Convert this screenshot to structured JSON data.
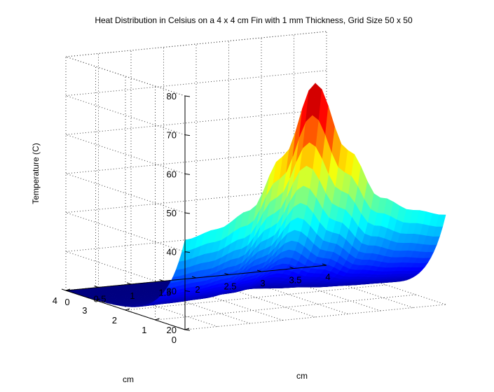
{
  "chart_data": {
    "type": "surface",
    "title": "Heat Distribution in Celsius on a 4 x 4 cm Fin with 1 mm Thickness, Grid Size 50 x 50",
    "xlabel": "cm",
    "ylabel": "cm",
    "zlabel": "Temperature (C)",
    "x_ticks": [
      "0",
      "0.5",
      "1",
      "1.5",
      "2",
      "2.5",
      "3",
      "3.5",
      "4"
    ],
    "y_ticks": [
      "0",
      "1",
      "2",
      "3",
      "4"
    ],
    "z_ticks": [
      "20",
      "30",
      "40",
      "50",
      "60",
      "70",
      "80"
    ],
    "xlim": [
      0,
      4
    ],
    "ylim": [
      0,
      4
    ],
    "zlim": [
      20,
      80
    ],
    "grid": true,
    "colormap": "jet",
    "surface_samples": {
      "edge_y0": {
        "x": [
          0,
          0.5,
          1,
          1.5,
          2,
          2.5,
          3,
          3.5,
          4
        ],
        "z": [
          43,
          45,
          49,
          62,
          80,
          62,
          49,
          45,
          43
        ]
      },
      "corner_values": {
        "x0_y0": 43,
        "x4_y0": 43,
        "x0_y4": 20,
        "x4_y4": 20
      },
      "peak": {
        "x": 2,
        "y": 0,
        "z": 80
      }
    }
  }
}
